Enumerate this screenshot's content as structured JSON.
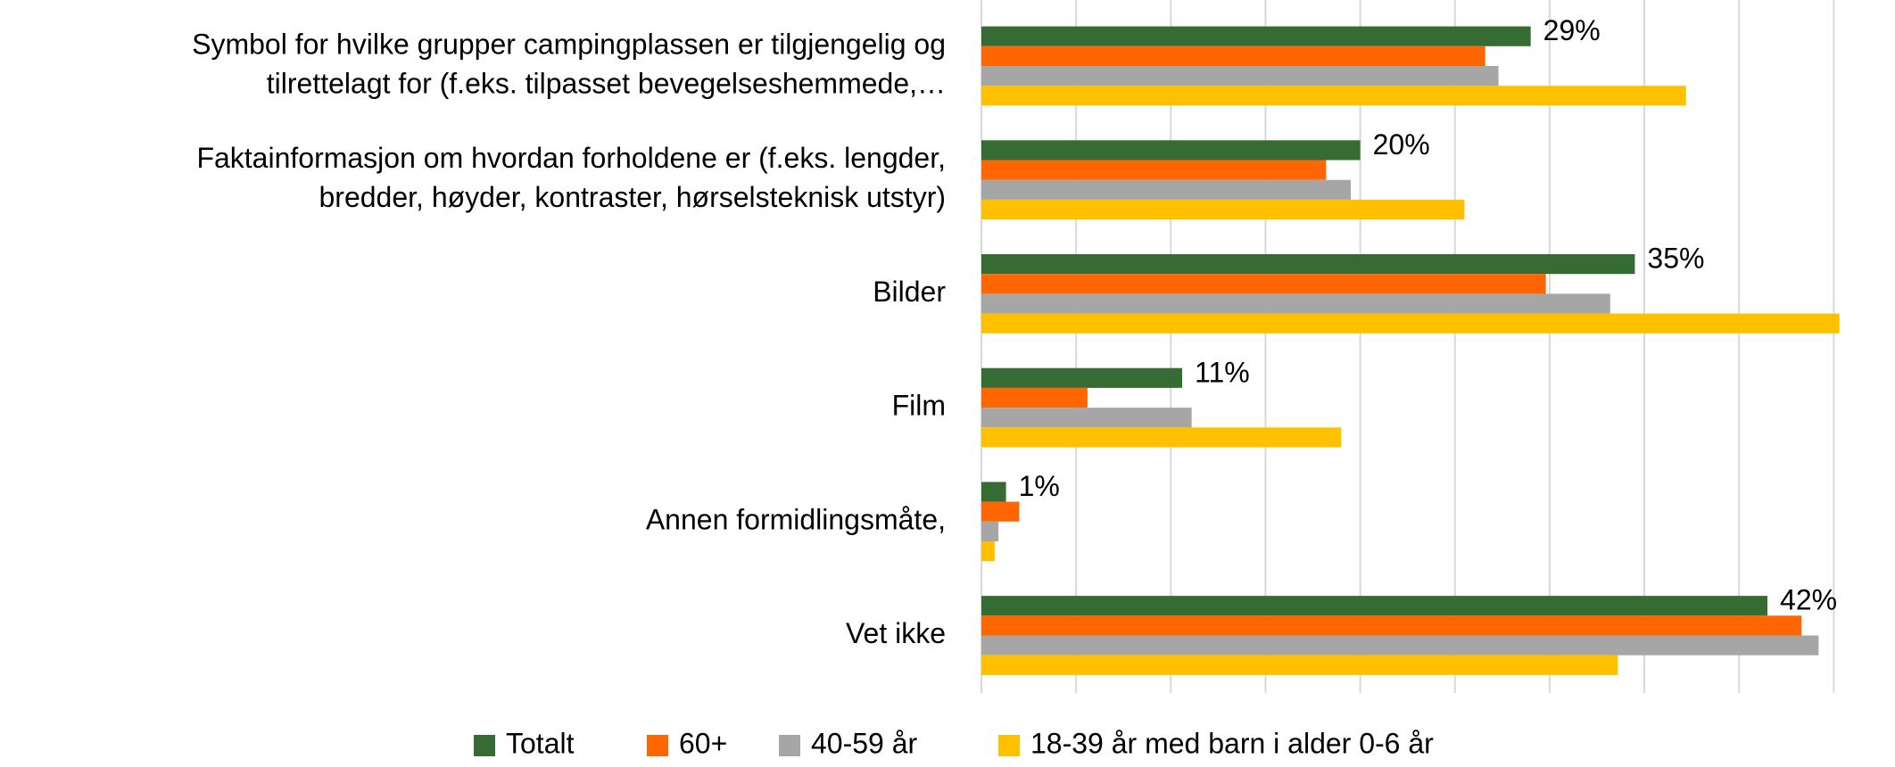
{
  "chart_data": {
    "type": "hbar",
    "categories": [
      [
        "Symbol for hvilke grupper campingplassen er tilgjengelig og",
        "tilrettelagt for (f.eks. tilpasset bevegelseshemmede,…"
      ],
      [
        "Faktainformasjon om hvordan forholdene er (f.eks. lengder,",
        "bredder, høyder, kontraster, hørselsteknisk utstyr)"
      ],
      [
        "Bilder"
      ],
      [
        "Film"
      ],
      [
        "Annen formidlingsmåte,"
      ],
      [
        "Vet ikke"
      ]
    ],
    "series": [
      {
        "name": "Totalt",
        "color": "#376b34",
        "values": [
          29.0,
          20.0,
          34.5,
          10.6,
          1.3,
          41.5
        ],
        "value_labels": [
          "29%",
          "20%",
          "35%",
          "11%",
          "1%",
          "42%"
        ]
      },
      {
        "name": "60+",
        "color": "#ff6600",
        "values": [
          26.6,
          18.2,
          29.8,
          5.6,
          2.0,
          43.3
        ]
      },
      {
        "name": "40-59 år",
        "color": "#a6a6a6",
        "values": [
          27.3,
          19.5,
          33.2,
          11.1,
          0.9,
          44.2
        ]
      },
      {
        "name": "18-39 år med barn i alder 0-6 år",
        "color": "#ffc000",
        "values": [
          37.2,
          25.5,
          45.3,
          19.0,
          0.7,
          33.6
        ]
      }
    ],
    "xlim": [
      0,
      46
    ],
    "xticks": [
      0,
      5,
      10,
      15,
      20,
      25,
      30,
      35,
      40,
      45
    ],
    "grid": true,
    "legend": "bottom"
  }
}
